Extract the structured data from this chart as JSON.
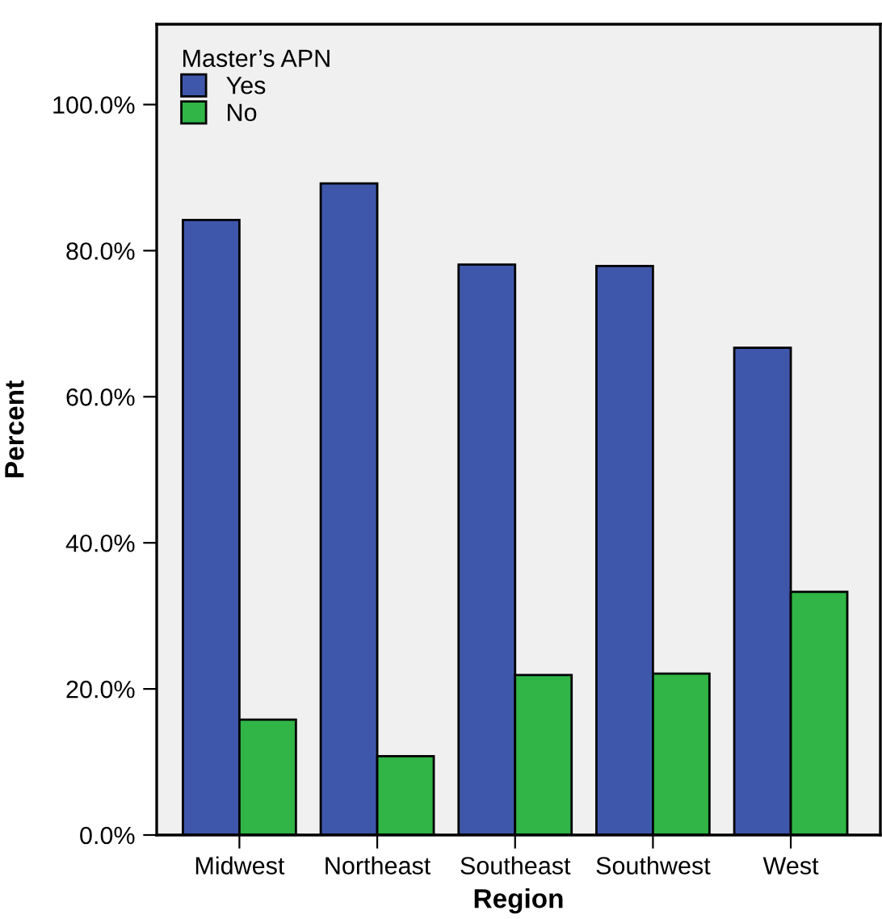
{
  "chart_data": {
    "type": "bar",
    "xlabel": "Region",
    "ylabel": "Percent",
    "legend_title": "Master’s APN",
    "legend": "top left",
    "grid": false,
    "categories": [
      "Midwest",
      "Northeast",
      "Southeast",
      "Southwest",
      "West"
    ],
    "series": [
      {
        "name": "Yes",
        "color": "#3f57aa",
        "values": [
          84.2,
          89.2,
          78.1,
          77.9,
          66.7
        ]
      },
      {
        "name": "No",
        "color": "#30b546",
        "values": [
          15.8,
          10.8,
          21.9,
          22.1,
          33.3
        ]
      }
    ],
    "ylim": [
      0,
      111
    ],
    "yticks": [
      {
        "value": 0,
        "label": "0.0%"
      },
      {
        "value": 20,
        "label": "20.0%"
      },
      {
        "value": 40,
        "label": "40.0%"
      },
      {
        "value": 60,
        "label": "60.0%"
      },
      {
        "value": 80,
        "label": "80.0%"
      },
      {
        "value": 100,
        "label": "100.0%"
      }
    ]
  }
}
